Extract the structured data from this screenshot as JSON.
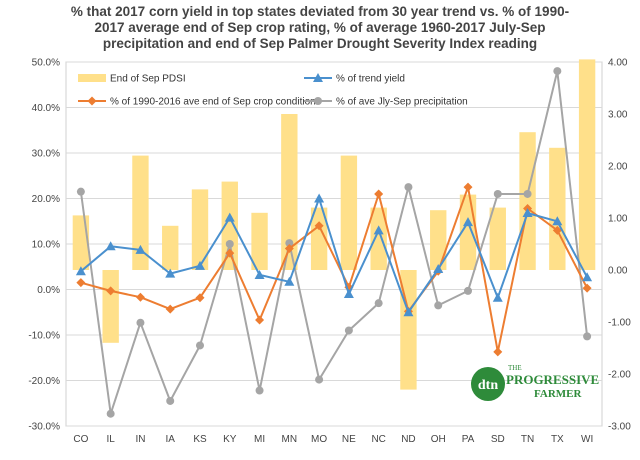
{
  "title_lines": [
    "% that 2017 corn yield in top states deviated from 30 year trend vs. % of 1990-",
    "2017 average end of Sep crop rating, % of average 1960-2017 July-Sep",
    "precipitation and end of Sep Palmer Drought Severity Index reading"
  ],
  "logo": {
    "badge": "dtn",
    "line1": "THE",
    "line2": "PROGRESSIVE",
    "line3": "FARMER"
  },
  "colors": {
    "pdsi": "#FFE08A",
    "trend": "#4A90CE",
    "crop": "#ED7D31",
    "precip": "#A5A5A5",
    "logo": "#2E8B3A"
  },
  "chart_data": {
    "type": "bar",
    "categories": [
      "CO",
      "IL",
      "IN",
      "IA",
      "KS",
      "KY",
      "MI",
      "MN",
      "MO",
      "NE",
      "NC",
      "ND",
      "OH",
      "PA",
      "SD",
      "TN",
      "TX",
      "WI"
    ],
    "y_left": {
      "min": -0.3,
      "max": 0.5,
      "step": 0.1,
      "tick_labels": [
        "-30.0%",
        "-20.0%",
        "-10.0%",
        "0.0%",
        "10.0%",
        "20.0%",
        "30.0%",
        "40.0%",
        "50.0%"
      ]
    },
    "y_right": {
      "min": -3.0,
      "max": 4.0,
      "step": 1.0,
      "tick_labels": [
        "-3.00",
        "-2.00",
        "-1.00",
        "0.00",
        "1.00",
        "2.00",
        "3.00",
        "4.00"
      ]
    },
    "grid": true,
    "legend_position": "top",
    "series": [
      {
        "name": "End of Sep PDSI",
        "type": "bar",
        "axis": "right",
        "values": [
          1.05,
          -1.4,
          2.2,
          0.85,
          1.55,
          1.7,
          1.1,
          3.0,
          1.2,
          2.2,
          1.2,
          -2.3,
          1.15,
          1.45,
          1.2,
          2.65,
          2.35,
          4.05
        ]
      },
      {
        "name": "% of trend yield",
        "type": "line",
        "axis": "left",
        "values": [
          0.04,
          0.095,
          0.087,
          0.035,
          0.052,
          0.158,
          0.032,
          0.017,
          0.2,
          -0.01,
          0.13,
          -0.05,
          0.045,
          0.148,
          -0.018,
          0.168,
          0.15,
          0.027
        ]
      },
      {
        "name": "% of 1990-2016 ave end of Sep crop condition",
        "type": "line",
        "axis": "left",
        "values": [
          0.015,
          -0.003,
          -0.017,
          -0.043,
          -0.018,
          0.08,
          -0.067,
          0.09,
          0.14,
          0.005,
          0.21,
          -0.048,
          0.04,
          0.225,
          -0.137,
          0.178,
          0.13,
          0.003
        ]
      },
      {
        "name": "% of ave Jly-Sep precipitation",
        "type": "line",
        "axis": "left",
        "values": [
          0.215,
          -0.273,
          -0.073,
          -0.245,
          -0.123,
          0.1,
          -0.222,
          0.102,
          -0.198,
          -0.09,
          -0.03,
          0.225,
          -0.035,
          -0.003,
          0.21,
          0.21,
          0.48,
          -0.103
        ]
      }
    ]
  }
}
